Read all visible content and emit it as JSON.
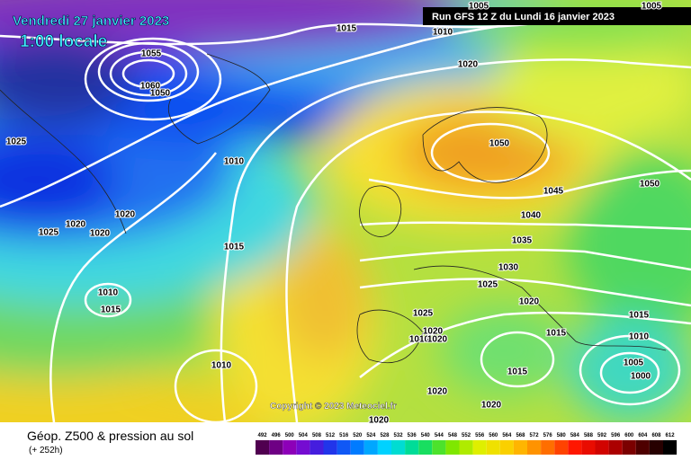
{
  "header": {
    "date": "Vendredi 27 janvier 2023",
    "time": "1:00 locale",
    "run": "Run GFS 12 Z du Lundi 16 janvier 2023"
  },
  "copyright": "Copyright © 2023 Meteociel.fr",
  "footer": {
    "title": "Géop. Z500 & pression au sol",
    "lead": "(+ 252h)"
  },
  "isobar_labels": [
    "1005",
    "1005",
    "1015",
    "1010",
    "1020",
    "1055",
    "1060",
    "1050",
    "1025",
    "1010",
    "1050",
    "1045",
    "1050",
    "1020",
    "1020",
    "1025",
    "1020",
    "1040",
    "1035",
    "1015",
    "1030",
    "1025",
    "1010",
    "1015",
    "1020",
    "1025",
    "1020",
    "1010",
    "1020",
    "1015",
    "1015",
    "1010",
    "1005",
    "1000",
    "1010",
    "1015",
    "1020",
    "1020",
    "1020"
  ],
  "scale": {
    "values": [
      492,
      496,
      500,
      504,
      508,
      512,
      516,
      520,
      524,
      528,
      532,
      536,
      540,
      544,
      548,
      552,
      556,
      560,
      564,
      568,
      572,
      576,
      580,
      584,
      588,
      592,
      596,
      600,
      604,
      608,
      612
    ]
  }
}
